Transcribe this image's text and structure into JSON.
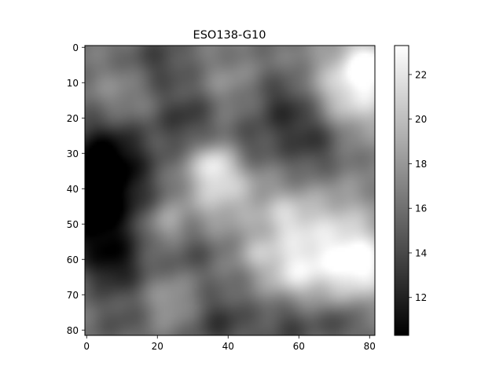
{
  "chart_data": {
    "type": "heatmap",
    "title": "ESO138-G10",
    "xlabel": "",
    "ylabel": "",
    "colormap": "gray",
    "grid": false,
    "x_extent": [
      -0.5,
      81.5
    ],
    "y_extent": [
      81.5,
      -0.5
    ],
    "y_inverted": true,
    "x_ticks": [
      "0",
      "20",
      "40",
      "60",
      "80"
    ],
    "y_ticks": [
      "0",
      "10",
      "20",
      "30",
      "40",
      "50",
      "60",
      "70",
      "80"
    ],
    "colorbar": {
      "range": [
        10.3,
        23.3
      ],
      "ticks": [
        "12",
        "14",
        "16",
        "18",
        "20",
        "22"
      ]
    },
    "grid_size": [
      82,
      82
    ],
    "base_value": 16.2,
    "features": [
      {
        "x": 76,
        "y": 12,
        "amplitude": 6.0,
        "radius": 9,
        "description": "bright region upper right"
      },
      {
        "x": 80,
        "y": 4,
        "amplitude": 4.5,
        "radius": 5
      },
      {
        "x": 69,
        "y": 56,
        "amplitude": 5.5,
        "radius": 11,
        "description": "bright region lower right"
      },
      {
        "x": 78,
        "y": 62,
        "amplitude": 4.5,
        "radius": 6
      },
      {
        "x": 58,
        "y": 64,
        "amplitude": 3.5,
        "radius": 6
      },
      {
        "x": 38,
        "y": 40,
        "amplitude": 4.5,
        "radius": 8,
        "description": "bright central patch"
      },
      {
        "x": 36,
        "y": 33,
        "amplitude": 3.5,
        "radius": 4
      },
      {
        "x": 56,
        "y": 48,
        "amplitude": 2.8,
        "radius": 5
      },
      {
        "x": 22,
        "y": 50,
        "amplitude": 3.0,
        "radius": 4
      },
      {
        "x": 48,
        "y": 58,
        "amplitude": 2.2,
        "radius": 4
      },
      {
        "x": 24,
        "y": 72,
        "amplitude": 2.2,
        "radius": 5
      },
      {
        "x": 10,
        "y": 14,
        "amplitude": 1.8,
        "radius": 6
      },
      {
        "x": 40,
        "y": 10,
        "amplitude": 1.5,
        "radius": 5
      },
      {
        "x": 4,
        "y": 40,
        "amplitude": -5.5,
        "radius": 10,
        "description": "dark region left"
      },
      {
        "x": 6,
        "y": 30,
        "amplitude": -3.5,
        "radius": 8
      },
      {
        "x": 8,
        "y": 62,
        "amplitude": -4.0,
        "radius": 6
      },
      {
        "x": 2,
        "y": 52,
        "amplitude": -3.0,
        "radius": 7
      },
      {
        "x": 64,
        "y": 26,
        "amplitude": -3.5,
        "radius": 7
      },
      {
        "x": 56,
        "y": 16,
        "amplitude": -3.0,
        "radius": 6
      },
      {
        "x": 28,
        "y": 20,
        "amplitude": -3.0,
        "radius": 6
      },
      {
        "x": 20,
        "y": 4,
        "amplitude": -2.5,
        "radius": 6
      },
      {
        "x": 38,
        "y": 78,
        "amplitude": -3.0,
        "radius": 6
      },
      {
        "x": 58,
        "y": 78,
        "amplitude": -2.8,
        "radius": 6
      },
      {
        "x": 72,
        "y": 78,
        "amplitude": -2.5,
        "radius": 4
      },
      {
        "x": 46,
        "y": 28,
        "amplitude": -2.0,
        "radius": 5
      },
      {
        "x": 30,
        "y": 58,
        "amplitude": -1.8,
        "radius": 5
      },
      {
        "x": 10,
        "y": 78,
        "amplitude": -1.5,
        "radius": 5
      }
    ]
  }
}
